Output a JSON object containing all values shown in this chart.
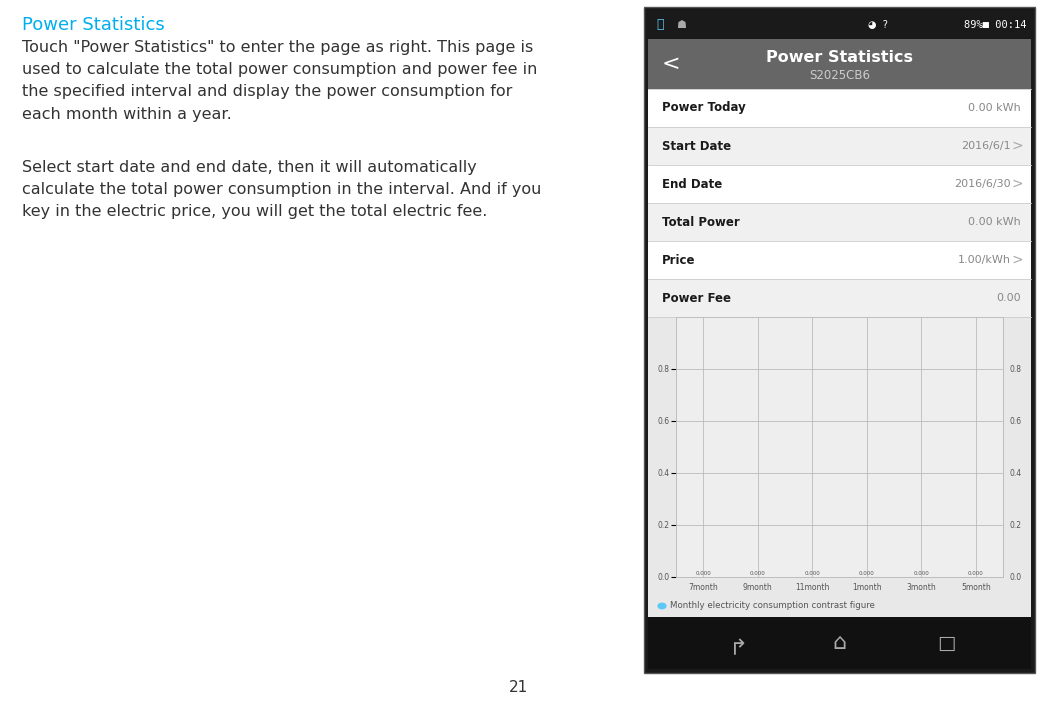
{
  "page_number": "21",
  "left_title": "Power Statistics",
  "left_title_color": "#00AEEF",
  "left_para1": "Touch \"Power Statistics\" to enter the page as right. This page is\nused to calculate the total power consumption and power fee in\nthe specified interval and display the power consumption for\neach month within a year.",
  "left_para2": "Select start date and end date, then it will automatically\ncalculate the total power consumption in the interval. And if you\nkey in the electric price, you will get the total electric fee.",
  "status_bar_color": "#1a1a1a",
  "header_color": "#666666",
  "header_title": "Power Statistics",
  "header_subtitle": "S2025CB6",
  "rows": [
    {
      "label": "Power Today",
      "value": "0.00 kWh",
      "has_arrow": false
    },
    {
      "label": "Start Date",
      "value": "2016/6/1",
      "has_arrow": true
    },
    {
      "label": "End Date",
      "value": "2016/6/30",
      "has_arrow": true
    },
    {
      "label": "Total Power",
      "value": "0.00 kWh",
      "has_arrow": false
    },
    {
      "label": "Price",
      "value": "1.00/kWh",
      "has_arrow": true
    },
    {
      "label": "Power Fee",
      "value": "0.00",
      "has_arrow": false
    }
  ],
  "chart_yticks": [
    0.0,
    0.2,
    0.4,
    0.6,
    0.8
  ],
  "chart_xticks": [
    "7month",
    "9month",
    "11month",
    "1month",
    "3month",
    "5month"
  ],
  "chart_legend_color": "#5bc8f5",
  "chart_legend_label": "Monthly electricity consumption contrast figure",
  "nav_bar_color": "#111111",
  "overall_bg": "#ffffff",
  "text_color": "#333333",
  "row_sep_color": "#cccccc",
  "row_colors": [
    "#ffffff",
    "#f0f0f0"
  ]
}
